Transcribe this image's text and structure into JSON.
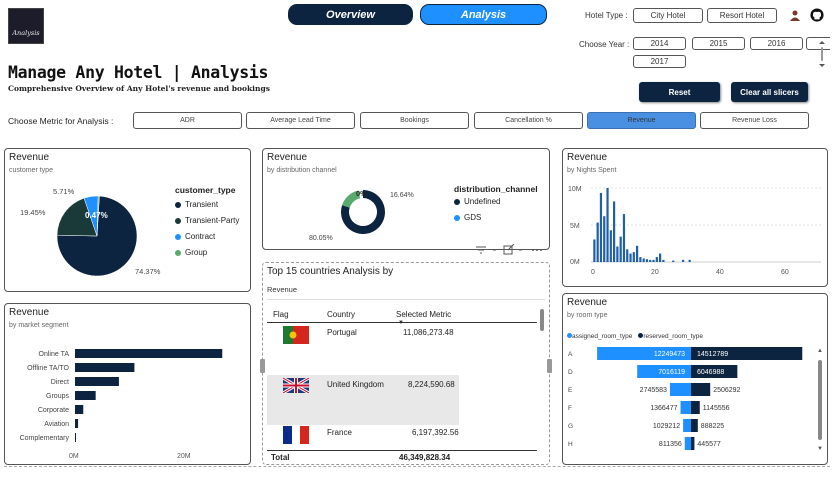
{
  "nav": {
    "overview": "Overview",
    "analysis": "Analysis"
  },
  "logo_text": "Analysis",
  "hotel_type": {
    "label": "Hotel Type :",
    "options": [
      "City Hotel",
      "Resort Hotel"
    ]
  },
  "year": {
    "label": "Choose Year :",
    "options": [
      "2014",
      "2015",
      "2016",
      "2017"
    ]
  },
  "page": {
    "title": "Manage Any Hotel | Analysis",
    "subtitle": "Comprehensive Overview of Any Hotel's revenue and bookings"
  },
  "actions": {
    "reset": "Reset",
    "clear": "Clear all slicers"
  },
  "metric": {
    "label": "Choose Metric for Analysis :",
    "options": [
      "ADR",
      "Average Lead Time",
      "Bookings",
      "Cancellation %",
      "Revenue",
      "Revenue Loss"
    ],
    "active": "Revenue"
  },
  "colors": {
    "navy": "#0c2440",
    "dark_teal": "#1a3a3a",
    "blue": "#1e90ff",
    "green": "#5aaa6e",
    "mid_blue": "#1f5fa8"
  },
  "customer_type": {
    "title": "Revenue",
    "subtitle": "customer type",
    "legend_title": "customer_type",
    "legend": [
      "Transient",
      "Transient-Party",
      "Contract",
      "Group"
    ],
    "labels": [
      "74.37%",
      "19.45%",
      "5.71%",
      "0.47%"
    ]
  },
  "distribution": {
    "title": "Revenue",
    "subtitle": "by distribution channel",
    "legend_title": "distribution_channel",
    "legend": [
      "Undefined",
      "GDS"
    ],
    "labels": [
      "80.05%",
      "16.64%",
      "0%"
    ]
  },
  "nights": {
    "title": "Revenue",
    "subtitle": "by Nights Spent",
    "y_ticks": [
      "10M",
      "5M",
      "0M"
    ],
    "x_ticks": [
      "0",
      "20",
      "40",
      "60"
    ]
  },
  "countries": {
    "title": "Top 15 countries Analysis by",
    "subtitle": "Revenue",
    "headers": [
      "Flag",
      "Country",
      "Selected Metric"
    ],
    "rows": [
      {
        "country": "Portugal",
        "value": "11,086,273.48"
      },
      {
        "country": "United Kingdom",
        "value": "8,224,590.68"
      },
      {
        "country": "France",
        "value": "6,197,392.56"
      }
    ],
    "total_label": "Total",
    "total_value": "46,349,828.34"
  },
  "market": {
    "title": "Revenue",
    "subtitle": "by market segment",
    "x_ticks": [
      "0M",
      "20M"
    ]
  },
  "room": {
    "title": "Revenue",
    "subtitle": "by room type",
    "legend": [
      "assigned_room_type",
      "reserved_room_type"
    ]
  },
  "chart_data": [
    {
      "type": "pie",
      "categories": [
        "Transient",
        "Transient-Party",
        "Contract",
        "Group"
      ],
      "values": [
        74.37,
        19.45,
        5.71,
        0.47
      ],
      "title": "Revenue"
    },
    {
      "type": "pie",
      "categories": [
        "Undefined",
        "GDS"
      ],
      "values": [
        80.05,
        16.64
      ],
      "title": "Revenue"
    },
    {
      "type": "bar",
      "x": [
        1,
        2,
        3,
        4,
        5,
        6,
        7,
        8,
        9,
        10,
        11,
        12,
        13,
        14,
        15,
        16,
        17,
        18,
        19,
        20,
        21,
        22,
        25,
        28,
        30
      ],
      "values": [
        3.2,
        5.6,
        9.8,
        6.5,
        10.5,
        4.5,
        8.6,
        2.2,
        3.6,
        6.8,
        1.8,
        1.2,
        1.4,
        2.3,
        0.7,
        0.5,
        0.4,
        0.3,
        0.3,
        0.7,
        1.2,
        0.3,
        0.2,
        0.3,
        0.3
      ],
      "title": "Revenue",
      "ylim": [
        0,
        10.5
      ],
      "xlim": [
        0,
        70
      ]
    },
    {
      "type": "bar",
      "categories": [
        "Online TA",
        "Offline TA/TO",
        "Direct",
        "Groups",
        "Corporate",
        "Aviation",
        "Complementary"
      ],
      "values": [
        28.5,
        11.5,
        8.5,
        4,
        1.6,
        0.6,
        0.1
      ],
      "title": "Revenue",
      "xlim": [
        0,
        30
      ]
    },
    {
      "type": "bar",
      "categories": [
        "A",
        "D",
        "E",
        "F",
        "G",
        "H"
      ],
      "series": [
        {
          "name": "assigned_room_type",
          "values": [
            12249473,
            7016119,
            2745583,
            1366477,
            1029212,
            811356
          ]
        },
        {
          "name": "reserved_room_type",
          "values": [
            14512789,
            6046988,
            2506292,
            1145556,
            888225,
            445577
          ]
        }
      ],
      "title": "Revenue"
    }
  ]
}
